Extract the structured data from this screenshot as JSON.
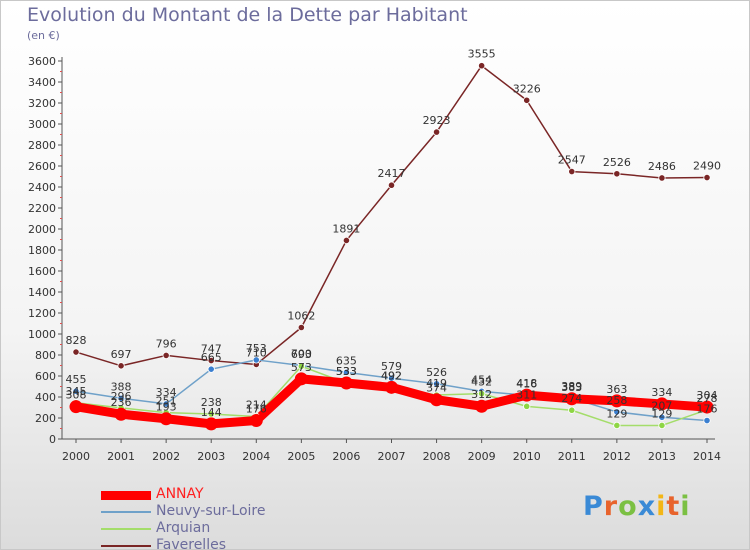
{
  "title": "Evolution du Montant de la Dette par Habitant",
  "unit": "(en €)",
  "brand": {
    "logo_text": "Proxiti"
  },
  "chart_data": {
    "type": "line",
    "title": "Evolution du Montant de la Dette par Habitant",
    "subtitle": "(en €)",
    "categories": [
      "2000",
      "2001",
      "2002",
      "2003",
      "2004",
      "2005",
      "2006",
      "2007",
      "2008",
      "2009",
      "2010",
      "2011",
      "2012",
      "2013",
      "2014"
    ],
    "ylim": [
      0,
      3600
    ],
    "yticks": [
      0,
      200,
      400,
      600,
      800,
      1000,
      1200,
      1400,
      1600,
      1800,
      2000,
      2200,
      2400,
      2600,
      2800,
      3000,
      3200,
      3400,
      3600
    ],
    "grid": false,
    "legend": "bottom-left",
    "series": [
      {
        "name": "ANNAY",
        "color": "#ff0000",
        "marker": "#ff0000",
        "values": [
          308,
          236,
          193,
          144,
          176,
          573,
          533,
          492,
          374,
          312,
          418,
          383,
          363,
          334,
          304
        ]
      },
      {
        "name": "Neuvy-sur-Loire",
        "color": "#6fa1c9",
        "marker": "#3a7fd0",
        "values": [
          455,
          388,
          334,
          665,
          753,
          700,
          635,
          579,
          526,
          454,
          416,
          389,
          258,
          207,
          176
        ]
      },
      {
        "name": "Arquian",
        "color": "#a4dd6a",
        "marker": "#8ed645",
        "values": [
          345,
          296,
          251,
          238,
          214,
          693,
          533,
          492,
          419,
          432,
          311,
          274,
          129,
          129,
          278
        ]
      },
      {
        "name": "Faverelles",
        "color": "#7a2626",
        "marker": "#7a2626",
        "values": [
          828,
          697,
          796,
          747,
          710,
          1062,
          1891,
          2417,
          2923,
          3555,
          3226,
          2547,
          2526,
          2486,
          2490
        ]
      }
    ]
  }
}
